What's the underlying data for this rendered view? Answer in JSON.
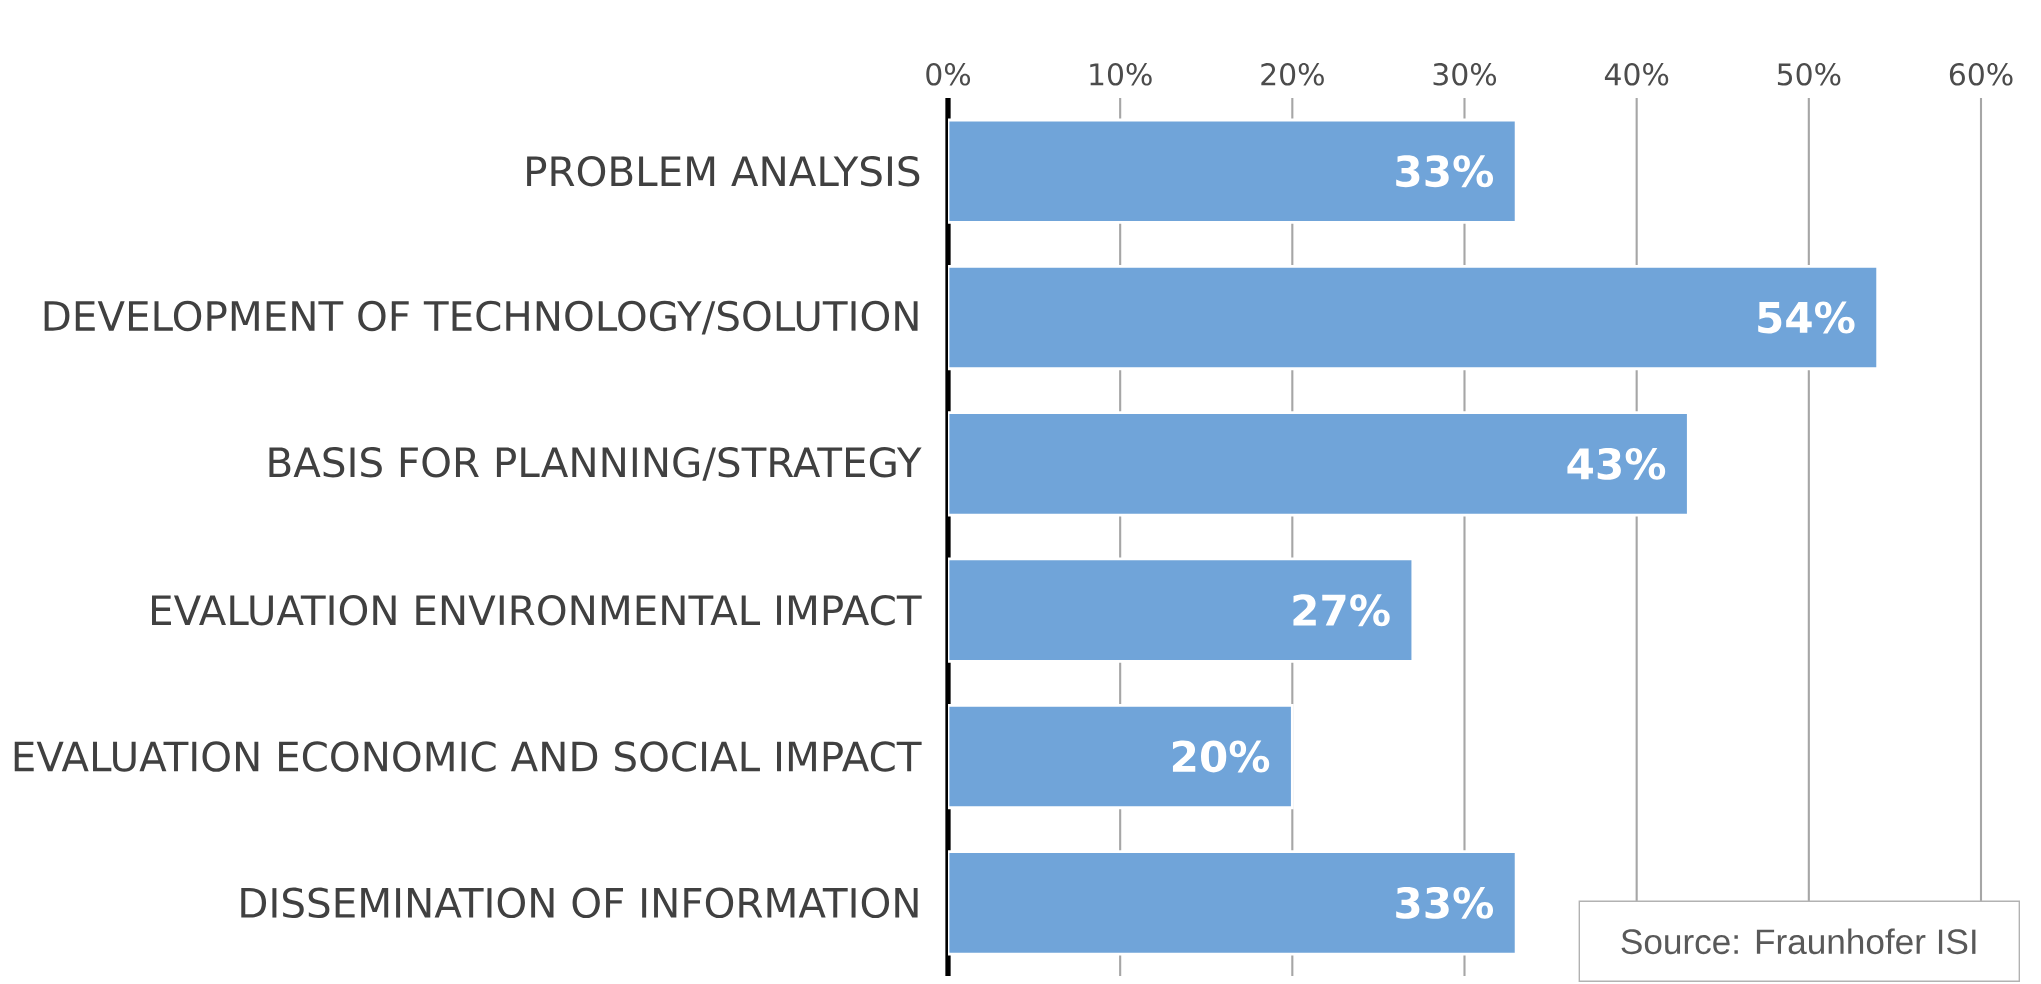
{
  "chart_data": {
    "type": "bar",
    "orientation": "horizontal",
    "categories": [
      "PROBLEM ANALYSIS",
      "DEVELOPMENT OF TECHNOLOGY/SOLUTION",
      "BASIS FOR PLANNING/STRATEGY",
      "EVALUATION ENVIRONMENTAL IMPACT",
      "EVALUATION ECONOMIC AND SOCIAL IMPACT",
      "DISSEMINATION OF INFORMATION"
    ],
    "values": [
      33,
      54,
      43,
      27,
      20,
      33
    ],
    "value_labels": [
      "33%",
      "54%",
      "43%",
      "27%",
      "20%",
      "33%"
    ],
    "color": "#70a4d9",
    "xlim": [
      0,
      60
    ],
    "xticks": [
      {
        "value": 0,
        "label": "0%"
      },
      {
        "value": 10,
        "label": "10%"
      },
      {
        "value": 20,
        "label": "20%"
      },
      {
        "value": 30,
        "label": "30%"
      },
      {
        "value": 40,
        "label": "40%"
      },
      {
        "value": 50,
        "label": "50%"
      },
      {
        "value": 60,
        "label": "60%"
      }
    ],
    "grid": "x",
    "annotations": [
      "Source: Fraunhofer ISI"
    ]
  }
}
